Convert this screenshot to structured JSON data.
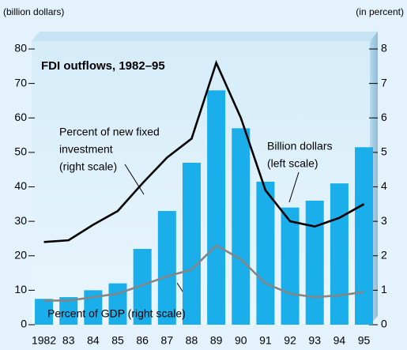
{
  "chart_data": {
    "type": "bar_line",
    "title": "FDI outflows, 1982–95",
    "y_label": "(billion dollars)",
    "y2_label": "(in percent)",
    "categories": [
      "1982",
      "83",
      "84",
      "85",
      "86",
      "87",
      "88",
      "89",
      "90",
      "91",
      "92",
      "93",
      "94",
      "95"
    ],
    "series": [
      {
        "name": "Billion dollars",
        "type": "bar",
        "axis": "y",
        "color": "#1aaeea",
        "values": [
          7.5,
          8,
          10,
          12,
          22,
          33,
          47,
          68,
          57,
          41.5,
          34,
          36,
          41,
          51.5
        ]
      },
      {
        "name": "Percent of new fixed investment",
        "type": "line",
        "axis": "y2",
        "color": "#000000",
        "values": [
          2.4,
          2.45,
          2.9,
          3.3,
          4.1,
          4.85,
          5.4,
          7.6,
          6.0,
          3.9,
          3.0,
          2.85,
          3.1,
          3.5
        ]
      },
      {
        "name": "Percent of GDP",
        "type": "line",
        "axis": "y2",
        "color": "#858585",
        "values": [
          0.7,
          0.7,
          0.8,
          0.9,
          1.15,
          1.4,
          1.6,
          2.3,
          1.9,
          1.2,
          0.9,
          0.8,
          0.85,
          0.95
        ]
      }
    ],
    "annotations": [
      {
        "lines": [
          "Percent of new fixed",
          "investment",
          "(right scale)"
        ]
      },
      {
        "lines": [
          "Billion dollars",
          "(left scale)"
        ]
      },
      {
        "lines": [
          "Percent of GDP (right scale)"
        ]
      }
    ],
    "ylim": [
      0,
      80
    ],
    "yticks": [
      0,
      10,
      20,
      30,
      40,
      50,
      60,
      70,
      80
    ],
    "y2lim": [
      0,
      8
    ],
    "y2ticks": [
      0,
      1,
      2,
      3,
      4,
      5,
      6,
      7,
      8
    ],
    "grid": false
  }
}
